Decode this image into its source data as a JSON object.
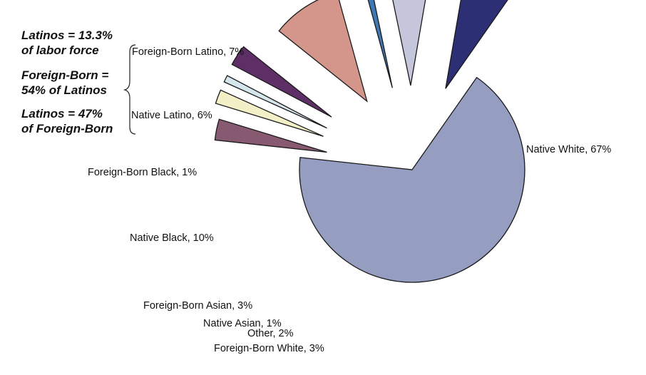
{
  "chart_data": {
    "type": "pie",
    "exploded": true,
    "title": "",
    "legend": "none",
    "slices": [
      {
        "label": "Native White, 67%",
        "value": 67,
        "color": "#959dc0"
      },
      {
        "label": "Foreign-Born White, 3%",
        "value": 3,
        "color": "#875a72"
      },
      {
        "label": "Other, 2%",
        "value": 2,
        "color": "#f3efc7"
      },
      {
        "label": "Native Asian, 1%",
        "value": 1,
        "color": "#d6e6ed"
      },
      {
        "label": "Foreign-Born Asian, 3%",
        "value": 3,
        "color": "#5e2f66"
      },
      {
        "label": "Native Black, 10%",
        "value": 10,
        "color": "#d4968b"
      },
      {
        "label": "Foreign-Born Black, 1%",
        "value": 1,
        "color": "#3f78b3"
      },
      {
        "label": "Native Latino, 6%",
        "value": 6,
        "color": "#c5c6dc"
      },
      {
        "label": "Foreign-Born Latino, 7%",
        "value": 7,
        "color": "#2c2f74"
      }
    ],
    "annotations": [
      {
        "lines": [
          "Latinos = 13.3%",
          "of labor force"
        ]
      },
      {
        "lines": [
          "Foreign-Born =",
          "54% of Latinos"
        ]
      },
      {
        "lines": [
          "Latinos = 47%",
          "of Foreign-Born"
        ]
      }
    ]
  }
}
